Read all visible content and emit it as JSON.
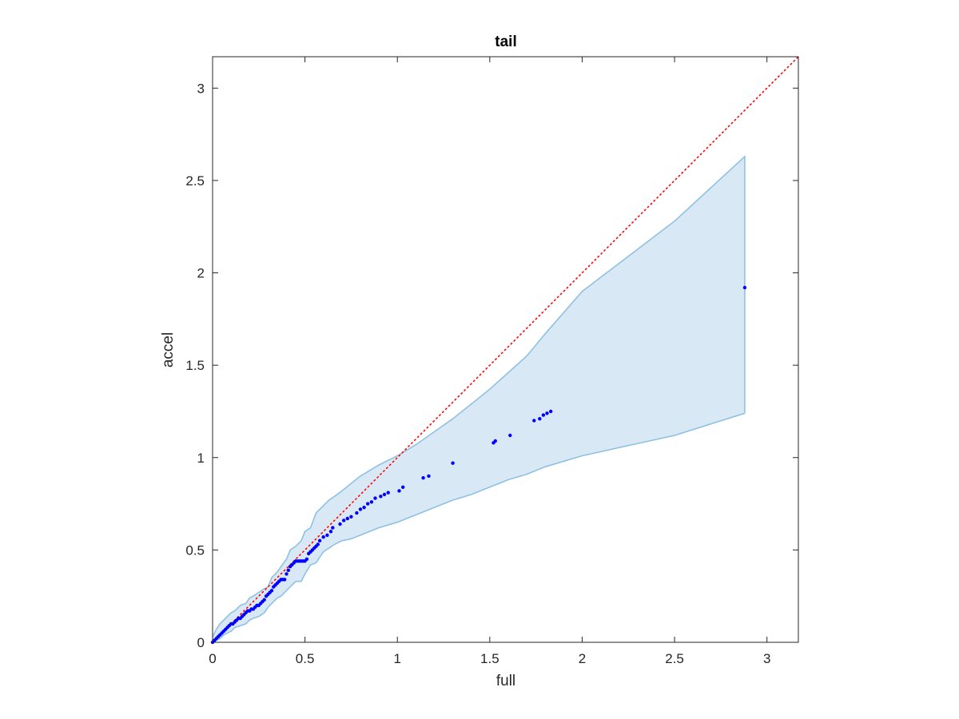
{
  "chart_data": {
    "type": "scatter",
    "title": "tail",
    "xlabel": "full",
    "ylabel": "accel",
    "xlim": [
      0,
      3.17
    ],
    "ylim": [
      0,
      3.17
    ],
    "xticks": [
      0,
      0.5,
      1,
      1.5,
      2,
      2.5,
      3
    ],
    "yticks": [
      0,
      0.5,
      1,
      1.5,
      2,
      2.5,
      3
    ],
    "xtick_labels": [
      "0",
      "0.5",
      "1",
      "1.5",
      "2",
      "2.5",
      "3"
    ],
    "ytick_labels": [
      "0",
      "0.5",
      "1",
      "1.5",
      "2",
      "2.5",
      "3"
    ],
    "grid": false,
    "reference_line": {
      "style": "dotted",
      "color": "#ff0000",
      "x": [
        0,
        3.17
      ],
      "y": [
        0,
        3.17
      ]
    },
    "band": {
      "fill_color": "#d9e8f5",
      "edge_color": "#8ec1e2",
      "upper": {
        "x": [
          0,
          0.02,
          0.04,
          0.06,
          0.08,
          0.1,
          0.12,
          0.15,
          0.18,
          0.2,
          0.22,
          0.25,
          0.28,
          0.3,
          0.32,
          0.35,
          0.37,
          0.4,
          0.42,
          0.45,
          0.48,
          0.5,
          0.53,
          0.56,
          0.58,
          0.6,
          0.63,
          0.66,
          0.7,
          0.75,
          0.8,
          0.9,
          1.0,
          1.1,
          1.2,
          1.3,
          1.4,
          1.5,
          1.6,
          1.7,
          1.8,
          2.0,
          2.5,
          2.88
        ],
        "y": [
          0.03,
          0.07,
          0.1,
          0.12,
          0.14,
          0.16,
          0.17,
          0.2,
          0.21,
          0.24,
          0.25,
          0.27,
          0.29,
          0.3,
          0.35,
          0.38,
          0.41,
          0.45,
          0.5,
          0.52,
          0.55,
          0.6,
          0.62,
          0.7,
          0.72,
          0.74,
          0.77,
          0.79,
          0.82,
          0.86,
          0.9,
          0.96,
          1.01,
          1.07,
          1.14,
          1.21,
          1.29,
          1.37,
          1.46,
          1.55,
          1.67,
          1.9,
          2.28,
          2.63
        ]
      },
      "lower": {
        "x": [
          0,
          0.02,
          0.04,
          0.06,
          0.08,
          0.1,
          0.12,
          0.15,
          0.18,
          0.2,
          0.22,
          0.25,
          0.28,
          0.3,
          0.32,
          0.35,
          0.37,
          0.4,
          0.42,
          0.45,
          0.48,
          0.5,
          0.53,
          0.56,
          0.58,
          0.6,
          0.63,
          0.66,
          0.7,
          0.75,
          0.8,
          0.9,
          1.0,
          1.1,
          1.2,
          1.3,
          1.4,
          1.5,
          1.6,
          1.7,
          1.8,
          2.0,
          2.5,
          2.88
        ],
        "y": [
          0.0,
          0.01,
          0.02,
          0.04,
          0.05,
          0.06,
          0.08,
          0.09,
          0.1,
          0.12,
          0.13,
          0.14,
          0.16,
          0.19,
          0.21,
          0.24,
          0.25,
          0.28,
          0.3,
          0.33,
          0.33,
          0.37,
          0.42,
          0.43,
          0.46,
          0.49,
          0.51,
          0.53,
          0.55,
          0.56,
          0.58,
          0.62,
          0.65,
          0.69,
          0.73,
          0.77,
          0.8,
          0.84,
          0.88,
          0.91,
          0.95,
          1.01,
          1.12,
          1.24
        ]
      }
    },
    "series": [
      {
        "color": "#0000ff",
        "x": [
          0.0,
          0.01,
          0.02,
          0.03,
          0.04,
          0.05,
          0.06,
          0.07,
          0.08,
          0.09,
          0.1,
          0.11,
          0.12,
          0.13,
          0.14,
          0.15,
          0.16,
          0.17,
          0.18,
          0.19,
          0.2,
          0.21,
          0.22,
          0.23,
          0.24,
          0.25,
          0.26,
          0.27,
          0.28,
          0.29,
          0.3,
          0.31,
          0.32,
          0.33,
          0.34,
          0.35,
          0.36,
          0.37,
          0.38,
          0.39,
          0.4,
          0.41,
          0.42,
          0.43,
          0.44,
          0.45,
          0.46,
          0.47,
          0.48,
          0.49,
          0.5,
          0.51,
          0.52,
          0.53,
          0.54,
          0.55,
          0.56,
          0.57,
          0.58,
          0.6,
          0.62,
          0.64,
          0.65,
          0.69,
          0.71,
          0.73,
          0.75,
          0.78,
          0.8,
          0.82,
          0.84,
          0.86,
          0.88,
          0.91,
          0.93,
          0.95,
          1.01,
          1.03,
          1.14,
          1.17,
          1.3,
          1.52,
          1.53,
          1.61,
          1.74,
          1.77,
          1.79,
          1.81,
          1.83,
          2.88
        ],
        "y": [
          0.0,
          0.01,
          0.02,
          0.03,
          0.04,
          0.05,
          0.06,
          0.07,
          0.08,
          0.09,
          0.1,
          0.1,
          0.11,
          0.12,
          0.13,
          0.13,
          0.14,
          0.15,
          0.16,
          0.17,
          0.17,
          0.18,
          0.18,
          0.19,
          0.2,
          0.2,
          0.21,
          0.22,
          0.23,
          0.25,
          0.26,
          0.27,
          0.28,
          0.3,
          0.31,
          0.32,
          0.33,
          0.34,
          0.34,
          0.34,
          0.37,
          0.39,
          0.41,
          0.42,
          0.43,
          0.44,
          0.44,
          0.44,
          0.44,
          0.44,
          0.44,
          0.45,
          0.48,
          0.49,
          0.5,
          0.51,
          0.52,
          0.53,
          0.55,
          0.57,
          0.58,
          0.6,
          0.62,
          0.64,
          0.66,
          0.67,
          0.68,
          0.7,
          0.72,
          0.73,
          0.75,
          0.76,
          0.78,
          0.79,
          0.8,
          0.81,
          0.82,
          0.84,
          0.89,
          0.9,
          0.97,
          1.08,
          1.09,
          1.12,
          1.2,
          1.21,
          1.23,
          1.24,
          1.25,
          1.92
        ]
      }
    ]
  }
}
